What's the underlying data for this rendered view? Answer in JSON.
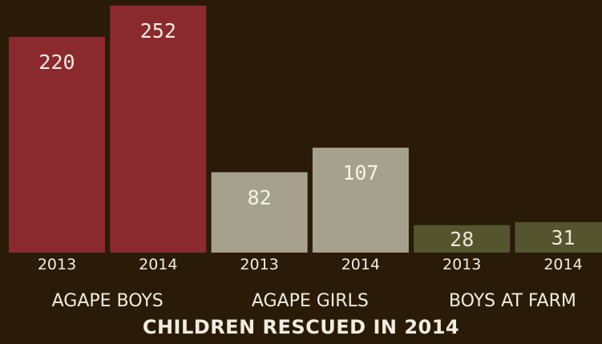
{
  "chart_data": {
    "type": "bar",
    "title": "CHILDREN RESCUED IN 2014",
    "groups": [
      {
        "name": "AGAPE BOYS",
        "color": "#8b2a2e",
        "label_color": "#f2ece0",
        "bars": [
          {
            "year": "2013",
            "value": 220
          },
          {
            "year": "2014",
            "value": 252
          }
        ]
      },
      {
        "name": "AGAPE GIRLS",
        "color": "#a5a18e",
        "label_color": "#f6f3ea",
        "bars": [
          {
            "year": "2013",
            "value": 82
          },
          {
            "year": "2014",
            "value": 107
          }
        ]
      },
      {
        "name": "BOYS AT FARM",
        "color": "#54552f",
        "label_color": "#ece7d2",
        "bars": [
          {
            "year": "2013",
            "value": 28
          },
          {
            "year": "2014",
            "value": 31
          }
        ]
      }
    ],
    "ylim": [
      0,
      252
    ],
    "grid": false,
    "legend": "none"
  }
}
